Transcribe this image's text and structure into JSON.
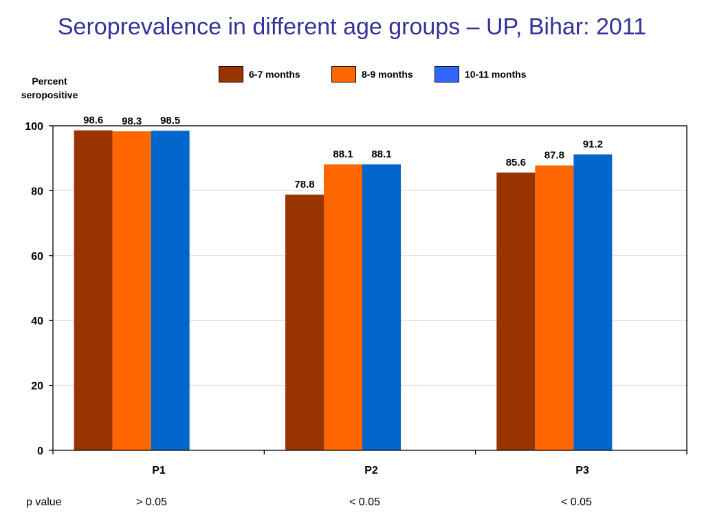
{
  "title": "Seroprevalence in different age groups – UP, Bihar: 2011",
  "legend": [
    {
      "label": "6-7 months",
      "color": "#993300"
    },
    {
      "label": "8-9 months",
      "color": "#FF6600"
    },
    {
      "label": "10-11 months",
      "color": "#3366FF"
    }
  ],
  "p_values": {
    "label": "p value",
    "values": [
      "> 0.05",
      "< 0.05",
      "< 0.05"
    ]
  },
  "chart_data": {
    "type": "bar",
    "title": "Seroprevalence in different age groups – UP, Bihar: 2011",
    "xlabel": "",
    "ylabel": "Percent seropositive",
    "categories": [
      "P1",
      "P2",
      "P3"
    ],
    "series": [
      {
        "name": "6-7 months",
        "values": [
          98.6,
          78.8,
          85.6
        ],
        "color": "#993300"
      },
      {
        "name": "8-9 months",
        "values": [
          98.3,
          88.1,
          87.8
        ],
        "color": "#FF6600"
      },
      {
        "name": "10-11 months",
        "values": [
          98.5,
          88.1,
          91.2
        ],
        "color": "#0066CC"
      }
    ],
    "value_labels": [
      [
        "98.6",
        "98.3",
        "98.5"
      ],
      [
        "78.8",
        "88.1",
        "88.1"
      ],
      [
        "85.6",
        "87.8",
        "91.2"
      ]
    ],
    "ylim": [
      0,
      100
    ],
    "yticks": [
      0,
      20,
      40,
      60,
      80,
      100
    ],
    "grid": true,
    "legend_position": "top"
  }
}
